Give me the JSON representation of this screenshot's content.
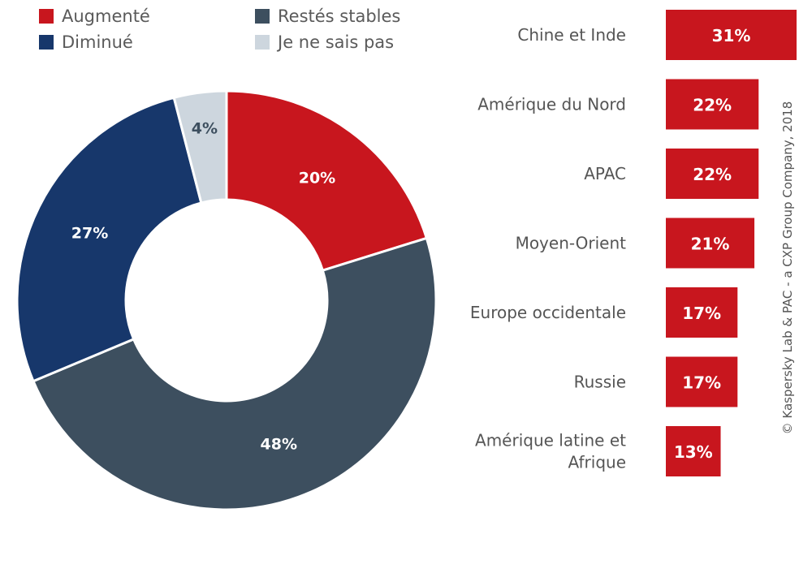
{
  "colors": {
    "augmente": "#c8161e",
    "diminue": "#17376b",
    "stables": "#3d4f5f",
    "nsp": "#cdd6de",
    "bar": "#c8161e"
  },
  "copyright": "© Kaspersky Lab & PAC - a CXP Group Company, 2018",
  "chart_data": [
    {
      "type": "pie",
      "donut": true,
      "legend_position": "top",
      "slices": [
        {
          "name": "Augmenté",
          "value": 20,
          "label": "20%",
          "color_key": "augmente"
        },
        {
          "name": "Restés stables",
          "value": 48,
          "label": "48%",
          "color_key": "stables"
        },
        {
          "name": "Diminué",
          "value": 27,
          "label": "27%",
          "color_key": "diminue"
        },
        {
          "name": "Je ne sais pas",
          "value": 4,
          "label": "4%",
          "color_key": "nsp"
        }
      ],
      "legend": [
        "Augmenté",
        "Diminué",
        "Restés stables",
        "Je ne sais pas"
      ]
    },
    {
      "type": "bar",
      "orientation": "horizontal",
      "categories": [
        "Chine et Inde",
        "Amérique du Nord",
        "APAC",
        "Moyen-Orient",
        "Europe occidentale",
        "Russie",
        "Amérique latine et Afrique"
      ],
      "category_lines": [
        [
          "Chine et Inde"
        ],
        [
          "Amérique du Nord"
        ],
        [
          "APAC"
        ],
        [
          "Moyen-Orient"
        ],
        [
          "Europe occidentale"
        ],
        [
          "Russie"
        ],
        [
          "Amérique latine et",
          "Afrique"
        ]
      ],
      "values": [
        31,
        22,
        22,
        21,
        17,
        17,
        13
      ],
      "value_labels": [
        "31%",
        "22%",
        "22%",
        "21%",
        "17%",
        "17%",
        "13%"
      ],
      "xlim": [
        0,
        31
      ]
    }
  ]
}
